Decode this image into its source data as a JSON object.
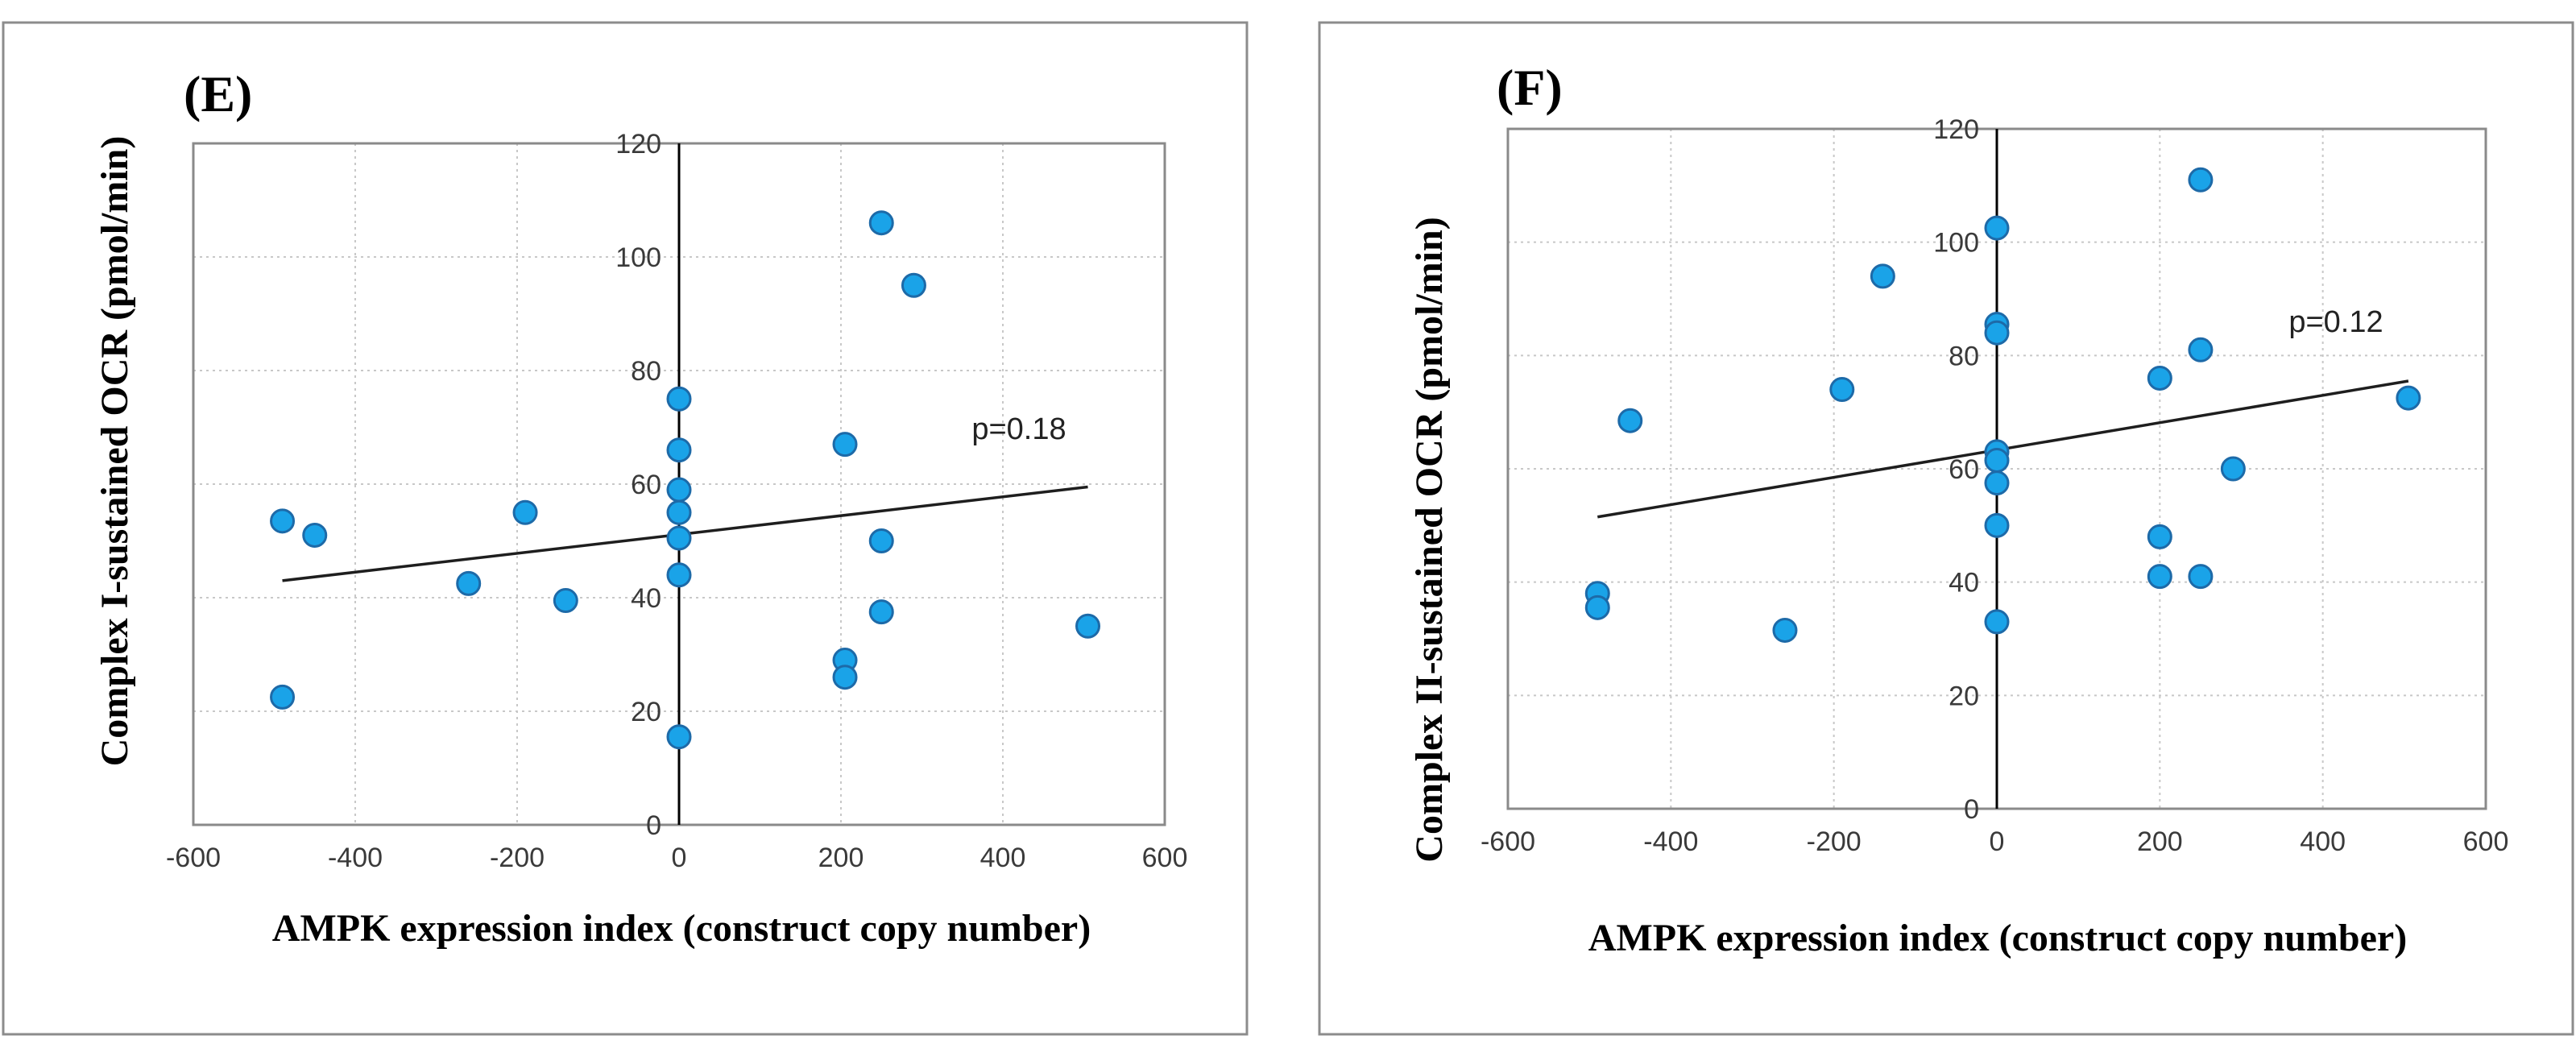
{
  "colors": {
    "point_fill": "#1aa3e8",
    "point_stroke": "#1d6aa8",
    "trend": "#1e1e1e"
  },
  "chart_data": [
    {
      "type": "scatter",
      "panel_label": "(E)",
      "title": "",
      "xlabel": "AMPK expression index (construct copy number)",
      "ylabel": "Complex I-sustained OCR (pmol/min)",
      "xlim": [
        -600,
        600
      ],
      "ylim": [
        0,
        120
      ],
      "x_ticks": [
        -600,
        -400,
        -200,
        0,
        200,
        400,
        600
      ],
      "y_ticks": [
        0,
        20,
        40,
        60,
        80,
        100,
        120
      ],
      "x_tick_labels": [
        "-600",
        "-400",
        "-200",
        "0",
        "200",
        "400",
        "600"
      ],
      "y_tick_labels": [
        "0",
        "20",
        "40",
        "60",
        "80",
        "100",
        "120"
      ],
      "grid": true,
      "annotation": "p=0.18",
      "trendline": {
        "x": [
          -490,
          505
        ],
        "y": [
          43,
          59.5
        ]
      },
      "points": [
        {
          "x": -490,
          "y": 53.5
        },
        {
          "x": -450,
          "y": 51
        },
        {
          "x": -490,
          "y": 22.5
        },
        {
          "x": -260,
          "y": 42.5
        },
        {
          "x": -190,
          "y": 55
        },
        {
          "x": -140,
          "y": 39.5
        },
        {
          "x": 0,
          "y": 75
        },
        {
          "x": 0,
          "y": 66
        },
        {
          "x": 0,
          "y": 59
        },
        {
          "x": 0,
          "y": 55
        },
        {
          "x": 0,
          "y": 50.5
        },
        {
          "x": 0,
          "y": 44
        },
        {
          "x": 0,
          "y": 15.5
        },
        {
          "x": 205,
          "y": 67
        },
        {
          "x": 205,
          "y": 29
        },
        {
          "x": 205,
          "y": 26
        },
        {
          "x": 250,
          "y": 106
        },
        {
          "x": 250,
          "y": 50
        },
        {
          "x": 250,
          "y": 37.5
        },
        {
          "x": 290,
          "y": 95
        },
        {
          "x": 505,
          "y": 35
        }
      ]
    },
    {
      "type": "scatter",
      "panel_label": "(F)",
      "title": "",
      "xlabel": "AMPK expression index (construct copy number)",
      "ylabel": "Complex II-sustained OCR (pmol/min)",
      "xlim": [
        -600,
        600
      ],
      "ylim": [
        0,
        120
      ],
      "x_ticks": [
        -600,
        -400,
        -200,
        0,
        200,
        400,
        600
      ],
      "y_ticks": [
        0,
        20,
        40,
        60,
        80,
        100,
        120
      ],
      "x_tick_labels": [
        "-600",
        "-400",
        "-200",
        "0",
        "200",
        "400",
        "600"
      ],
      "y_tick_labels": [
        "0",
        "20",
        "40",
        "60",
        "80",
        "100",
        "120"
      ],
      "grid": true,
      "annotation": "p=0.12",
      "trendline": {
        "x": [
          -490,
          505
        ],
        "y": [
          51.5,
          75.5
        ]
      },
      "points": [
        {
          "x": -490,
          "y": 38
        },
        {
          "x": -490,
          "y": 35.5
        },
        {
          "x": -450,
          "y": 68.5
        },
        {
          "x": -260,
          "y": 31.5
        },
        {
          "x": -190,
          "y": 74
        },
        {
          "x": -140,
          "y": 94
        },
        {
          "x": 0,
          "y": 102.5
        },
        {
          "x": 0,
          "y": 85.5
        },
        {
          "x": 0,
          "y": 84
        },
        {
          "x": 0,
          "y": 63
        },
        {
          "x": 0,
          "y": 61.5
        },
        {
          "x": 0,
          "y": 57.5
        },
        {
          "x": 0,
          "y": 50
        },
        {
          "x": 0,
          "y": 33
        },
        {
          "x": 200,
          "y": 76
        },
        {
          "x": 200,
          "y": 48
        },
        {
          "x": 200,
          "y": 41
        },
        {
          "x": 250,
          "y": 111
        },
        {
          "x": 250,
          "y": 81
        },
        {
          "x": 250,
          "y": 41
        },
        {
          "x": 290,
          "y": 60
        },
        {
          "x": 505,
          "y": 72.5
        }
      ]
    }
  ]
}
